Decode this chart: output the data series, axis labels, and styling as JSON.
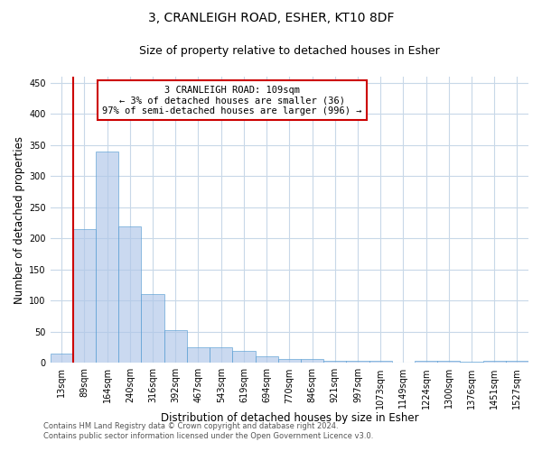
{
  "title_line1": "3, CRANLEIGH ROAD, ESHER, KT10 8DF",
  "title_line2": "Size of property relative to detached houses in Esher",
  "xlabel": "Distribution of detached houses by size in Esher",
  "ylabel": "Number of detached properties",
  "categories": [
    "13sqm",
    "89sqm",
    "164sqm",
    "240sqm",
    "316sqm",
    "392sqm",
    "467sqm",
    "543sqm",
    "619sqm",
    "694sqm",
    "770sqm",
    "846sqm",
    "921sqm",
    "997sqm",
    "1073sqm",
    "1149sqm",
    "1224sqm",
    "1300sqm",
    "1376sqm",
    "1451sqm",
    "1527sqm"
  ],
  "values": [
    15,
    215,
    340,
    220,
    110,
    52,
    25,
    25,
    20,
    10,
    6,
    6,
    3,
    3,
    3,
    1,
    4,
    3,
    2,
    3,
    4
  ],
  "bar_color": "#aec6e8",
  "bar_edge_color": "#5a9fd4",
  "bar_alpha": 0.65,
  "vline_color": "#cc0000",
  "vline_x_index": 1,
  "annotation_text": "3 CRANLEIGH ROAD: 109sqm\n← 3% of detached houses are smaller (36)\n97% of semi-detached houses are larger (996) →",
  "annotation_box_color": "#ffffff",
  "annotation_box_edge": "#cc0000",
  "ylim": [
    0,
    460
  ],
  "yticks": [
    0,
    50,
    100,
    150,
    200,
    250,
    300,
    350,
    400,
    450
  ],
  "footer_line1": "Contains HM Land Registry data © Crown copyright and database right 2024.",
  "footer_line2": "Contains public sector information licensed under the Open Government Licence v3.0.",
  "background_color": "#ffffff",
  "grid_color": "#c8d8e8",
  "title_fontsize": 10,
  "subtitle_fontsize": 9,
  "label_fontsize": 8.5,
  "tick_fontsize": 7,
  "annotation_fontsize": 7.5,
  "footer_fontsize": 6
}
